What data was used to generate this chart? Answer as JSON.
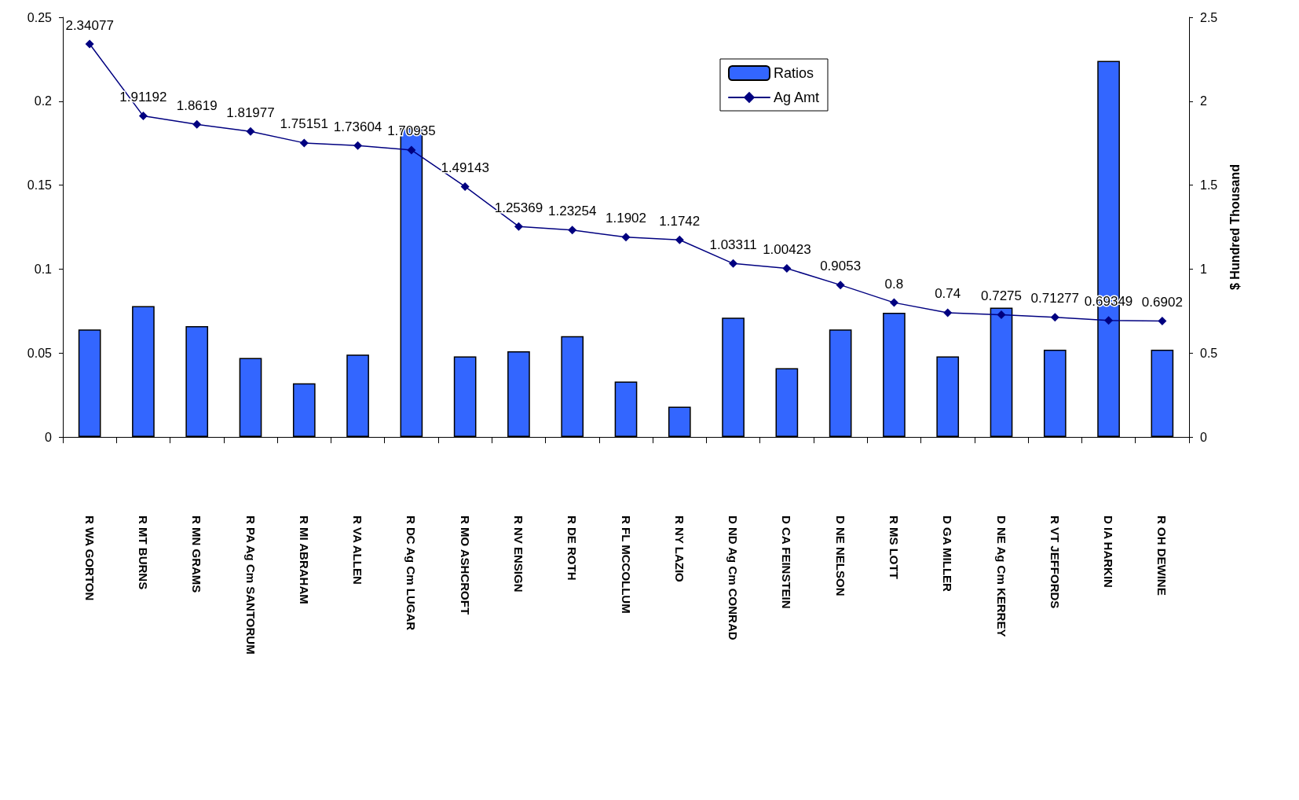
{
  "chart_data": {
    "type": "bar",
    "categories": [
      "R WA GORTON",
      "R MT BURNS",
      "R MN GRAMS",
      "R PA Ag Cm SANTORUM",
      "R MI ABRAHAM",
      "R VA ALLEN",
      "R DC Ag Cm LUGAR",
      "R MO ASHCROFT",
      "R NV ENSIGN",
      "R DE ROTH",
      "R FL MCCOLLUM",
      "R NY LAZIO",
      "D ND Ag Cm CONRAD",
      "D CA FEINSTEIN",
      "D NE NELSON",
      "R MS LOTT",
      "D GA MILLER",
      "D NE Ag Cm KERREY",
      "R VT JEFFORDS",
      "D IA HARKIN",
      "R OH DEWINE"
    ],
    "series": [
      {
        "name": "Ratios",
        "color": "#3366ff",
        "values": [
          0.064,
          0.078,
          0.066,
          0.047,
          0.032,
          0.049,
          0.184,
          0.048,
          0.051,
          0.06,
          0.033,
          0.018,
          0.071,
          0.041,
          0.064,
          0.074,
          0.048,
          0.077,
          0.052,
          0.224,
          0.052
        ]
      },
      {
        "name": "Ag Amt",
        "type": "line",
        "axis": "y2",
        "color": "#000080",
        "marker": "diamond",
        "data_labels": true,
        "values": [
          2.34077,
          1.91192,
          1.8619,
          1.81977,
          1.75151,
          1.73604,
          1.70935,
          1.49143,
          1.25369,
          1.23254,
          1.1902,
          1.1742,
          1.03311,
          1.00423,
          0.9053,
          0.8,
          0.74,
          0.7275,
          0.71277,
          0.69349,
          0.6902
        ]
      }
    ],
    "ylim": [
      0,
      0.25
    ],
    "yticks": [
      0,
      0.05,
      0.1,
      0.15,
      0.2,
      0.25
    ],
    "y2lim": [
      0,
      2.5
    ],
    "y2ticks": [
      0,
      0.5,
      1,
      1.5,
      2,
      2.5
    ],
    "y2label": "$ Hundred Thousand",
    "grid": false,
    "legend": "top right"
  }
}
